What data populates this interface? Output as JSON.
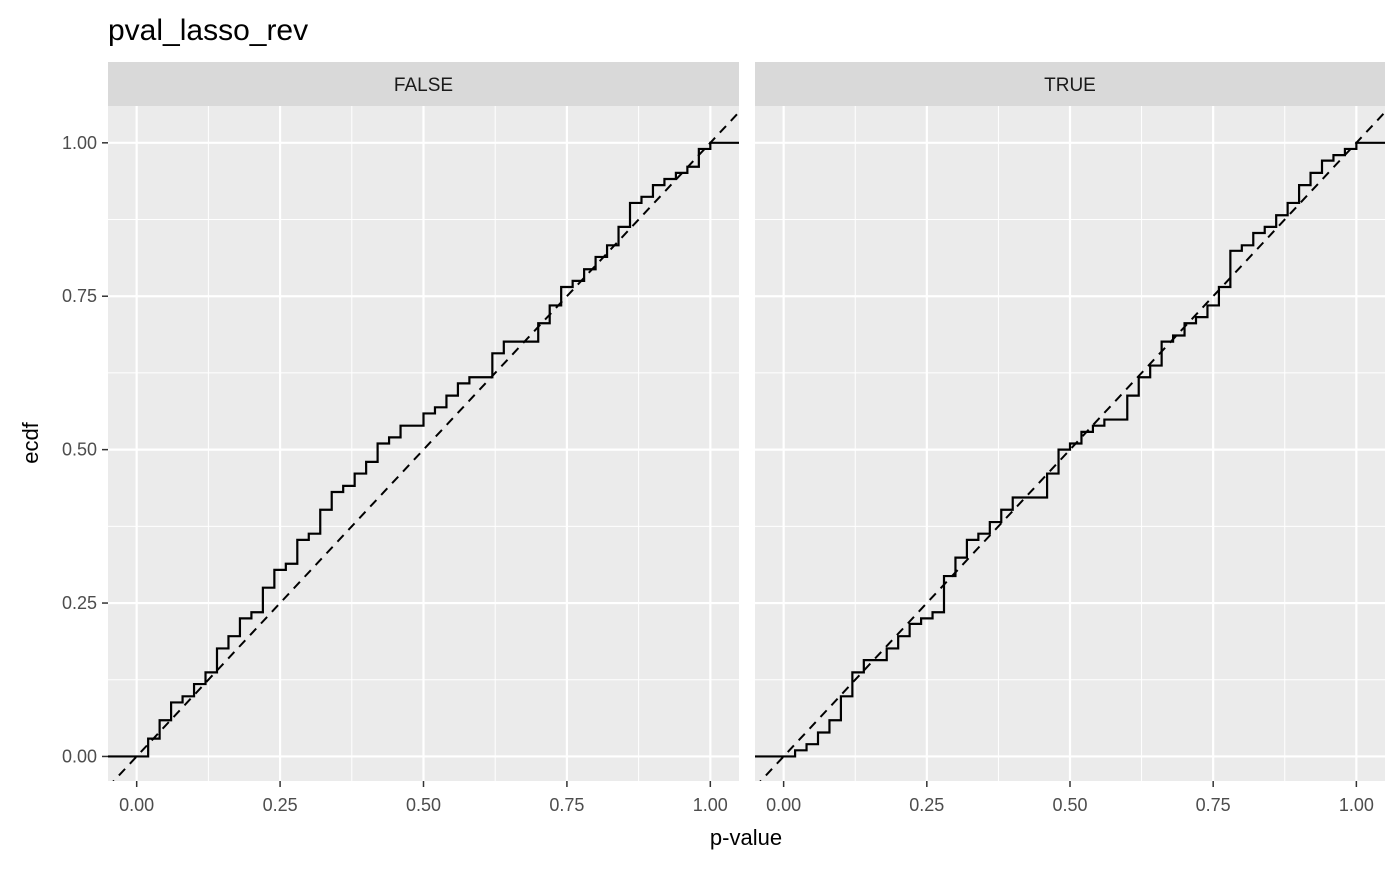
{
  "chart_data": {
    "type": "line",
    "title": "pval_lasso_rev",
    "xlabel": "p-value",
    "ylabel": "ecdf",
    "xlim": [
      -0.05,
      1.05
    ],
    "ylim": [
      -0.04,
      1.06
    ],
    "x_ticks": [
      0.0,
      0.25,
      0.5,
      0.75,
      1.0
    ],
    "x_tick_labels": [
      "0.00",
      "0.25",
      "0.50",
      "0.75",
      "1.00"
    ],
    "y_ticks": [
      0.0,
      0.25,
      0.5,
      0.75,
      1.0
    ],
    "y_tick_labels": [
      "0.00",
      "0.25",
      "0.50",
      "0.75",
      "1.00"
    ],
    "grid": true,
    "reference_line": {
      "style": "dashed",
      "slope": 1,
      "intercept": 0
    },
    "facets": [
      {
        "label": "FALSE",
        "steps": [
          [
            0.02,
            0.029
          ],
          [
            0.04,
            0.059
          ],
          [
            0.06,
            0.088
          ],
          [
            0.08,
            0.098
          ],
          [
            0.1,
            0.118
          ],
          [
            0.12,
            0.137
          ],
          [
            0.14,
            0.176
          ],
          [
            0.16,
            0.196
          ],
          [
            0.18,
            0.225
          ],
          [
            0.2,
            0.235
          ],
          [
            0.22,
            0.275
          ],
          [
            0.24,
            0.304
          ],
          [
            0.26,
            0.314
          ],
          [
            0.28,
            0.353
          ],
          [
            0.3,
            0.363
          ],
          [
            0.32,
            0.402
          ],
          [
            0.34,
            0.431
          ],
          [
            0.36,
            0.441
          ],
          [
            0.38,
            0.461
          ],
          [
            0.4,
            0.48
          ],
          [
            0.42,
            0.51
          ],
          [
            0.44,
            0.52
          ],
          [
            0.46,
            0.539
          ],
          [
            0.5,
            0.559
          ],
          [
            0.52,
            0.569
          ],
          [
            0.54,
            0.588
          ],
          [
            0.56,
            0.608
          ],
          [
            0.58,
            0.618
          ],
          [
            0.62,
            0.657
          ],
          [
            0.64,
            0.676
          ],
          [
            0.7,
            0.706
          ],
          [
            0.72,
            0.735
          ],
          [
            0.74,
            0.765
          ],
          [
            0.76,
            0.775
          ],
          [
            0.78,
            0.794
          ],
          [
            0.8,
            0.814
          ],
          [
            0.82,
            0.833
          ],
          [
            0.84,
            0.863
          ],
          [
            0.86,
            0.902
          ],
          [
            0.88,
            0.912
          ],
          [
            0.9,
            0.931
          ],
          [
            0.92,
            0.941
          ],
          [
            0.94,
            0.951
          ],
          [
            0.96,
            0.961
          ],
          [
            0.98,
            0.99
          ],
          [
            1.0,
            1.0
          ]
        ]
      },
      {
        "label": "TRUE",
        "steps": [
          [
            0.02,
            0.01
          ],
          [
            0.04,
            0.02
          ],
          [
            0.06,
            0.039
          ],
          [
            0.08,
            0.059
          ],
          [
            0.1,
            0.098
          ],
          [
            0.12,
            0.137
          ],
          [
            0.14,
            0.157
          ],
          [
            0.18,
            0.176
          ],
          [
            0.2,
            0.196
          ],
          [
            0.22,
            0.216
          ],
          [
            0.24,
            0.225
          ],
          [
            0.26,
            0.235
          ],
          [
            0.28,
            0.294
          ],
          [
            0.3,
            0.324
          ],
          [
            0.32,
            0.353
          ],
          [
            0.34,
            0.363
          ],
          [
            0.36,
            0.382
          ],
          [
            0.38,
            0.402
          ],
          [
            0.4,
            0.422
          ],
          [
            0.46,
            0.461
          ],
          [
            0.48,
            0.5
          ],
          [
            0.5,
            0.51
          ],
          [
            0.52,
            0.529
          ],
          [
            0.54,
            0.539
          ],
          [
            0.56,
            0.549
          ],
          [
            0.6,
            0.588
          ],
          [
            0.62,
            0.618
          ],
          [
            0.64,
            0.637
          ],
          [
            0.66,
            0.676
          ],
          [
            0.68,
            0.686
          ],
          [
            0.7,
            0.706
          ],
          [
            0.72,
            0.716
          ],
          [
            0.74,
            0.735
          ],
          [
            0.76,
            0.765
          ],
          [
            0.78,
            0.824
          ],
          [
            0.8,
            0.833
          ],
          [
            0.82,
            0.853
          ],
          [
            0.84,
            0.863
          ],
          [
            0.86,
            0.882
          ],
          [
            0.88,
            0.902
          ],
          [
            0.9,
            0.931
          ],
          [
            0.92,
            0.951
          ],
          [
            0.94,
            0.971
          ],
          [
            0.96,
            0.98
          ],
          [
            0.98,
            0.99
          ],
          [
            1.0,
            1.0
          ]
        ]
      }
    ]
  }
}
